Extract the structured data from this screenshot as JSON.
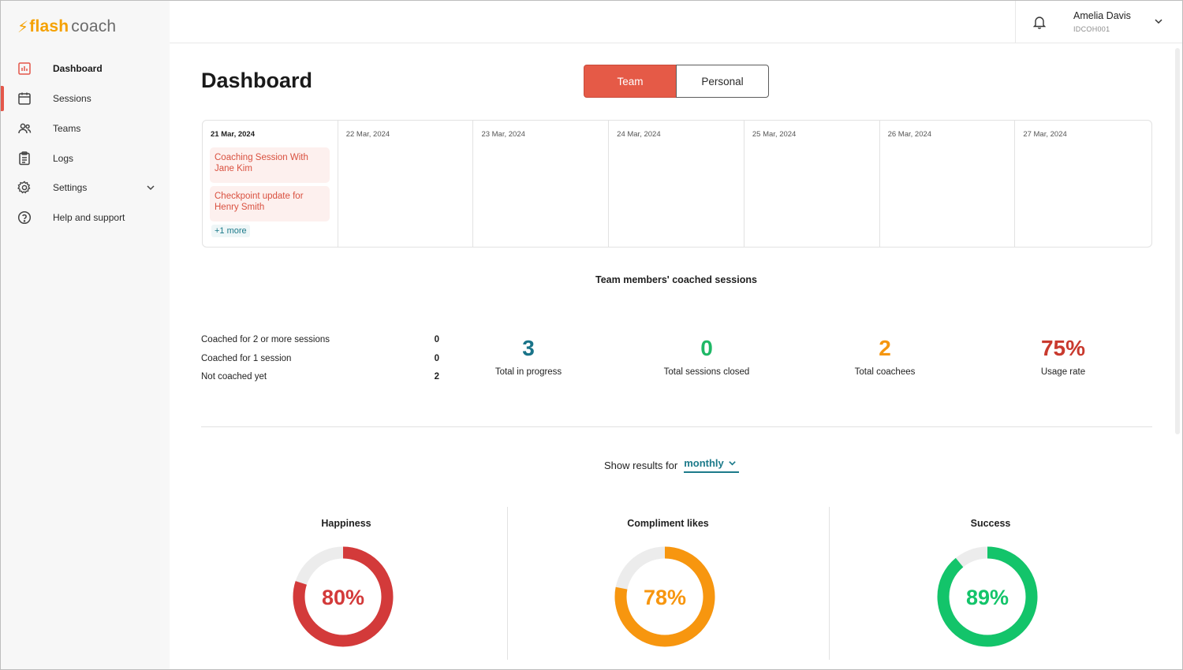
{
  "app": {
    "logo_flash": "flash",
    "logo_coach": "coach",
    "accent": "#e55a47"
  },
  "sidebar": {
    "items": [
      {
        "label": "Dashboard",
        "icon": "bar-chart-icon"
      },
      {
        "label": "Sessions",
        "icon": "calendar-icon"
      },
      {
        "label": "Teams",
        "icon": "people-icon"
      },
      {
        "label": "Logs",
        "icon": "clipboard-icon"
      },
      {
        "label": "Settings",
        "icon": "gear-icon"
      },
      {
        "label": "Help and support",
        "icon": "help-circle-icon"
      }
    ]
  },
  "header": {
    "user_name": "Amelia Davis",
    "user_id": "IDCOH001"
  },
  "page": {
    "title": "Dashboard",
    "toggle": {
      "team": "Team",
      "personal": "Personal",
      "selected": "Team"
    }
  },
  "calendar": {
    "days": [
      {
        "date": "21 Mar, 2024"
      },
      {
        "date": "22 Mar, 2024"
      },
      {
        "date": "23 Mar, 2024"
      },
      {
        "date": "24 Mar, 2024"
      },
      {
        "date": "25 Mar, 2024"
      },
      {
        "date": "26 Mar, 2024"
      },
      {
        "date": "27 Mar, 2024"
      }
    ],
    "events": [
      {
        "line1": "Coaching Session With",
        "line2": "Jane Kim"
      },
      {
        "line1": "Checkpoint update for",
        "line2": "Henry Smith"
      }
    ],
    "more": "+1 more"
  },
  "summary": {
    "title": "Team members' coached sessions",
    "rows": [
      {
        "label": "Coached for 2 or more sessions",
        "value": "0"
      },
      {
        "label": "Coached for 1 session",
        "value": "0"
      },
      {
        "label": "Not coached yet",
        "value": "2"
      }
    ],
    "kpis": [
      {
        "value": "3",
        "label": "Total in progress",
        "color": "#1a7489"
      },
      {
        "value": "0",
        "label": "Total sessions closed",
        "color": "#1fb866"
      },
      {
        "value": "2",
        "label": "Total coachees",
        "color": "#f5960f"
      },
      {
        "value": "75%",
        "label": "Usage rate",
        "color": "#c93a2e"
      }
    ]
  },
  "filter": {
    "label": "Show results for",
    "value": "monthly"
  },
  "gauges": [
    {
      "title": "Happiness",
      "value_text": "80%",
      "fraction": 0.8,
      "color": "#d33a3a"
    },
    {
      "title": "Compliment likes",
      "value_text": "78%",
      "fraction": 0.78,
      "color": "#f7960f"
    },
    {
      "title": "Success",
      "value_text": "89%",
      "fraction": 0.89,
      "color": "#13c46a"
    }
  ]
}
